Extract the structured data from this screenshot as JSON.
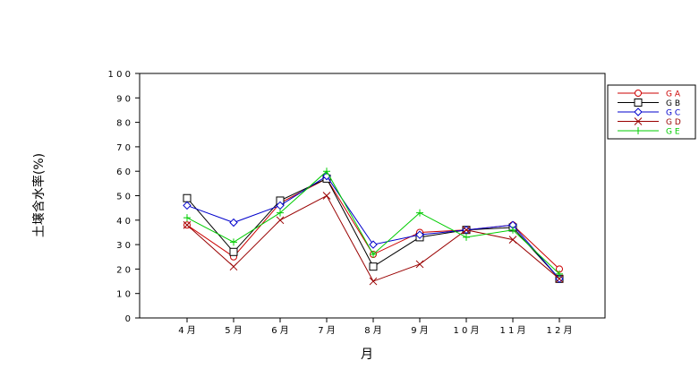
{
  "chart_data": {
    "type": "line",
    "xlabel": "月",
    "ylabel": "土壌含水率(%)",
    "categories": [
      "4 月",
      "5 月",
      "6 月",
      "7 月",
      "8 月",
      "9 月",
      "1 0 月",
      "1 1 月",
      "1 2 月"
    ],
    "ylim": [
      0,
      100
    ],
    "yticks": [
      "0",
      "1 0",
      "2 0",
      "3 0",
      "4 0",
      "5 0",
      "6 0",
      "7 0",
      "8 0",
      "9 0",
      "1 0 0"
    ],
    "grid": false,
    "legend_position": "right",
    "series": [
      {
        "name": "G A",
        "color": "#cc0000",
        "marker": "circle",
        "values": [
          38,
          25,
          47,
          57,
          26,
          35,
          36,
          38,
          20
        ]
      },
      {
        "name": "G B",
        "color": "#000000",
        "marker": "square",
        "values": [
          49,
          27,
          48,
          57,
          21,
          33,
          36,
          37,
          16
        ]
      },
      {
        "name": "G C",
        "color": "#0000cc",
        "marker": "diamond",
        "values": [
          46,
          39,
          46,
          58,
          30,
          34,
          36,
          38,
          16
        ]
      },
      {
        "name": "G D",
        "color": "#990000",
        "marker": "x",
        "values": [
          38,
          21,
          40,
          50,
          15,
          22,
          36,
          32,
          16
        ]
      },
      {
        "name": "G E",
        "color": "#00cc00",
        "marker": "plus",
        "values": [
          41,
          31,
          43,
          60,
          26,
          43,
          33,
          36,
          18
        ]
      }
    ]
  }
}
